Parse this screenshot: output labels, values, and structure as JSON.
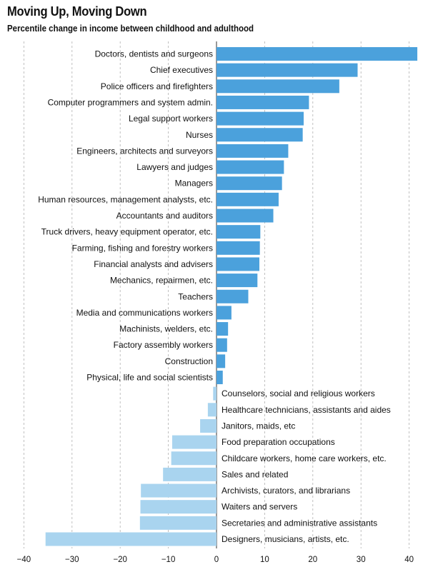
{
  "header": {
    "title": "Moving Up, Moving Down",
    "subtitle": "Percentile change in income between childhood and adulthood"
  },
  "colors": {
    "positive": "#4ba1dc",
    "negative": "#a9d4ef",
    "gridline": "#b0b0b0"
  },
  "chart_data": {
    "type": "bar",
    "orientation": "horizontal",
    "title": "Moving Up, Moving Down",
    "subtitle": "Percentile change in income between childhood and adulthood",
    "xlim": [
      -40,
      42
    ],
    "xticks": [
      -40,
      -30,
      -20,
      -10,
      0,
      10,
      20,
      30,
      40
    ],
    "grid": "vertical dashed",
    "categories": [
      "Doctors, dentists and surgeons",
      "Chief executives",
      "Police officers and firefighters",
      "Computer programmers and system admin.",
      "Legal support workers",
      "Nurses",
      "Engineers, architects and surveyors",
      "Lawyers and judges",
      "Managers",
      "Human resources, management analysts, etc.",
      "Accountants and auditors",
      "Truck drivers, heavy equipment operator, etc.",
      "Farming, fishing and forestry workers",
      "Financial analysts and advisers",
      "Mechanics, repairmen, etc.",
      "Teachers",
      "Media and communications workers",
      "Machinists, welders, etc.",
      "Factory assembly workers",
      "Construction",
      "Physical, life and social scientists",
      "Counselors, social and religious workers",
      "Healthcare technicians, assistants and aides",
      "Janitors, maids, etc",
      "Food preparation occupations",
      "Childcare workers, home care workers, etc.",
      "Sales and related",
      "Archivists, curators, and librarians",
      "Waiters and servers",
      "Secretaries and administrative assistants",
      "Designers, musicians, artists, etc."
    ],
    "values": [
      41.7,
      29.3,
      25.5,
      19.2,
      18.1,
      17.9,
      14.9,
      14.0,
      13.6,
      12.9,
      11.8,
      9.1,
      9.0,
      8.9,
      8.5,
      6.6,
      3.1,
      2.4,
      2.2,
      1.8,
      1.3,
      -0.7,
      -1.8,
      -3.4,
      -9.2,
      -9.4,
      -11.1,
      -15.7,
      -15.8,
      -15.9,
      -35.5
    ]
  }
}
